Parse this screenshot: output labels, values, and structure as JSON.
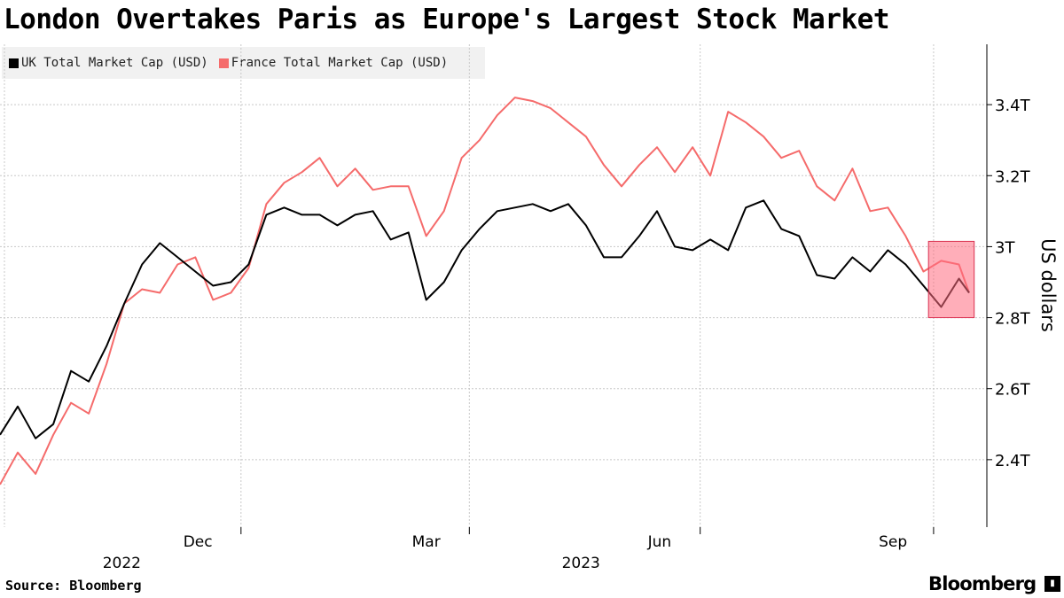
{
  "title": "London Overtakes Paris as Europe's Largest Stock Market",
  "source": "Source: Bloomberg",
  "brand": "Bloomberg",
  "chart_data": {
    "type": "line",
    "title": "London Overtakes Paris as Europe's Largest Stock Market",
    "ylabel": "US dollars",
    "ylim": [
      2.21,
      3.57
    ],
    "xlim": [
      "2022-09-28",
      "2023-10-22"
    ],
    "yticks": [
      {
        "v": 2.4,
        "label": "2.4T"
      },
      {
        "v": 2.6,
        "label": "2.6T"
      },
      {
        "v": 2.8,
        "label": "2.8T"
      },
      {
        "v": 3.0,
        "label": "3T"
      },
      {
        "v": 3.2,
        "label": "3.2T"
      },
      {
        "v": 3.4,
        "label": "3.4T"
      }
    ],
    "xticks": [
      {
        "date": "2022-12-15",
        "label": "Dec"
      },
      {
        "date": "2023-03-15",
        "label": "Mar"
      },
      {
        "date": "2023-06-15",
        "label": "Jun"
      },
      {
        "date": "2023-09-15",
        "label": "Sep"
      }
    ],
    "xyears": [
      {
        "date": "2022-11-15",
        "label": "2022"
      },
      {
        "date": "2023-05-15",
        "label": "2023"
      }
    ],
    "xgrid": [
      "2023-01-01",
      "2023-04-01",
      "2023-07-01",
      "2023-10-01"
    ],
    "grid": true,
    "legend": "top-left",
    "highlight": {
      "x": [
        "2023-09-29",
        "2023-10-17"
      ],
      "y": [
        2.8,
        3.015
      ],
      "color": "#ff6b7f"
    },
    "x": [
      "2022-09-28",
      "2022-10-05",
      "2022-10-12",
      "2022-10-19",
      "2022-10-26",
      "2022-11-02",
      "2022-11-09",
      "2022-11-16",
      "2022-11-23",
      "2022-11-30",
      "2022-12-07",
      "2022-12-14",
      "2022-12-21",
      "2022-12-28",
      "2023-01-04",
      "2023-01-11",
      "2023-01-18",
      "2023-01-25",
      "2023-02-01",
      "2023-02-08",
      "2023-02-15",
      "2023-02-22",
      "2023-03-01",
      "2023-03-08",
      "2023-03-15",
      "2023-03-22",
      "2023-03-29",
      "2023-04-05",
      "2023-04-12",
      "2023-04-19",
      "2023-04-26",
      "2023-05-03",
      "2023-05-10",
      "2023-05-17",
      "2023-05-24",
      "2023-05-31",
      "2023-06-07",
      "2023-06-14",
      "2023-06-21",
      "2023-06-28",
      "2023-07-05",
      "2023-07-12",
      "2023-07-19",
      "2023-07-26",
      "2023-08-02",
      "2023-08-09",
      "2023-08-16",
      "2023-08-23",
      "2023-08-30",
      "2023-09-06",
      "2023-09-13",
      "2023-09-20",
      "2023-09-27",
      "2023-10-04",
      "2023-10-11",
      "2023-10-15"
    ],
    "series": [
      {
        "name": "UK Total Market Cap (USD)",
        "color": "#000000",
        "values": [
          2.47,
          2.55,
          2.46,
          2.5,
          2.65,
          2.62,
          2.72,
          2.84,
          2.95,
          3.01,
          2.97,
          2.93,
          2.89,
          2.9,
          2.95,
          3.09,
          3.11,
          3.09,
          3.09,
          3.06,
          3.09,
          3.1,
          3.02,
          3.04,
          2.85,
          2.9,
          2.99,
          3.05,
          3.1,
          3.11,
          3.12,
          3.1,
          3.12,
          3.06,
          2.97,
          2.97,
          3.03,
          3.1,
          3.0,
          2.99,
          3.02,
          2.99,
          3.11,
          3.13,
          3.05,
          3.03,
          2.92,
          2.91,
          2.97,
          2.93,
          2.99,
          2.95,
          2.89,
          2.83,
          2.91,
          2.87
        ]
      },
      {
        "name": "France Total Market Cap (USD)",
        "color": "#f56b6b",
        "values": [
          2.33,
          2.42,
          2.36,
          2.47,
          2.56,
          2.53,
          2.67,
          2.84,
          2.88,
          2.87,
          2.95,
          2.97,
          2.85,
          2.87,
          2.94,
          3.12,
          3.18,
          3.21,
          3.25,
          3.17,
          3.22,
          3.16,
          3.17,
          3.17,
          3.03,
          3.1,
          3.25,
          3.3,
          3.37,
          3.42,
          3.41,
          3.39,
          3.35,
          3.31,
          3.23,
          3.17,
          3.23,
          3.28,
          3.21,
          3.28,
          3.2,
          3.38,
          3.35,
          3.31,
          3.25,
          3.27,
          3.17,
          3.13,
          3.22,
          3.1,
          3.11,
          3.03,
          2.93,
          2.96,
          2.95,
          2.87
        ]
      }
    ]
  }
}
